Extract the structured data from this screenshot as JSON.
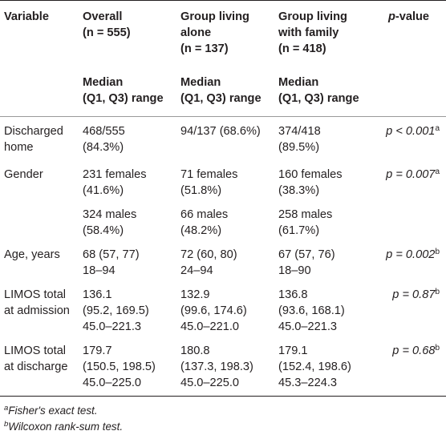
{
  "header": {
    "variable": "Variable",
    "overall_l1": "Overall",
    "overall_l2": "(n = 555)",
    "alone_l1": "Group living",
    "alone_l2": "alone",
    "alone_l3": "(n = 137)",
    "family_l1": "Group living",
    "family_l2": "with family",
    "family_l3": "(n = 418)",
    "pvalue_p": "p",
    "pvalue_rest": "-value"
  },
  "subheader": {
    "median": "Median",
    "range": "(Q1, Q3) range"
  },
  "rows": {
    "discharged": {
      "label_l1": "Discharged",
      "label_l2": "home",
      "overall_l1": "468/555",
      "overall_l2": "(84.3%)",
      "alone": "94/137 (68.6%)",
      "family_l1": "374/418",
      "family_l2": "(89.5%)",
      "p_text": "p < 0.001",
      "p_sup": "a"
    },
    "gender_f": {
      "label": "Gender",
      "overall_l1": "231 females",
      "overall_l2": "(41.6%)",
      "alone_l1": "71 females",
      "alone_l2": "(51.8%)",
      "family_l1": "160 females",
      "family_l2": "(38.3%)",
      "p_text": "p = 0.007",
      "p_sup": "a"
    },
    "gender_m": {
      "overall_l1": "324 males",
      "overall_l2": "(58.4%)",
      "alone_l1": "66 males",
      "alone_l2": "(48.2%)",
      "family_l1": "258 males",
      "family_l2": "(61.7%)"
    },
    "age": {
      "label": "Age, years",
      "overall_l1": "68 (57, 77)",
      "overall_l2": "18–94",
      "alone_l1": "72 (60, 80)",
      "alone_l2": "24–94",
      "family_l1": "67 (57, 76)",
      "family_l2": "18–90",
      "p_text": "p = 0.002",
      "p_sup": "b"
    },
    "limos_adm": {
      "label_l1": "LIMOS total",
      "label_l2": "at admission",
      "overall_l1": "136.1",
      "overall_l2": "(95.2, 169.5)",
      "overall_l3": "45.0–221.3",
      "alone_l1": "132.9",
      "alone_l2": "(99.6, 174.6)",
      "alone_l3": "45.0–221.0",
      "family_l1": "136.8",
      "family_l2": "(93.6, 168.1)",
      "family_l3": "45.0–221.3",
      "p_text": "p = 0.87",
      "p_sup": "b"
    },
    "limos_dis": {
      "label_l1": "LIMOS total",
      "label_l2": "at discharge",
      "overall_l1": "179.7",
      "overall_l2": "(150.5, 198.5)",
      "overall_l3": "45.0–225.0",
      "alone_l1": "180.8",
      "alone_l2": "(137.3, 198.3)",
      "alone_l3": "45.0–225.0",
      "family_l1": "179.1",
      "family_l2": "(152.4, 198.6)",
      "family_l3": "45.3–224.3",
      "p_text": "p = 0.68",
      "p_sup": "b"
    }
  },
  "footnotes": [
    {
      "mark": "a",
      "text": "Fisher's exact test."
    },
    {
      "mark": "b",
      "text": "Wilcoxon rank-sum test."
    }
  ]
}
